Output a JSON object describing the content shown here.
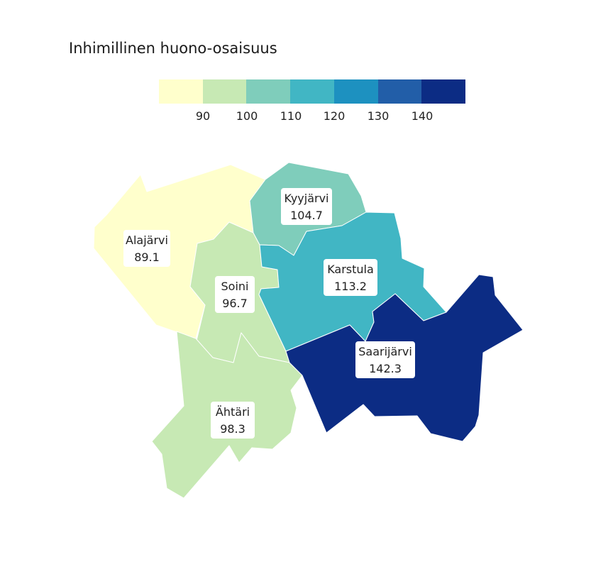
{
  "title": "Inhimillinen huono-osaisuus",
  "legend": {
    "colors": [
      "#ffffcc",
      "#c7e9b4",
      "#7fcdbb",
      "#41b6c4",
      "#1d91c0",
      "#225ea8",
      "#0c2c84"
    ],
    "ticks": [
      "90",
      "100",
      "110",
      "120",
      "130",
      "140"
    ]
  },
  "regions": [
    {
      "id": "alajarvi",
      "name": "Alajärvi",
      "value": "89.1",
      "color": "#ffffcc"
    },
    {
      "id": "soini",
      "name": "Soini",
      "value": "96.7",
      "color": "#c7e9b4"
    },
    {
      "id": "ahtari",
      "name": "Ähtäri",
      "value": "98.3",
      "color": "#c7e9b4"
    },
    {
      "id": "kyyjarvi",
      "name": "Kyyjärvi",
      "value": "104.7",
      "color": "#7fcdbb"
    },
    {
      "id": "karstula",
      "name": "Karstula",
      "value": "113.2",
      "color": "#41b6c4"
    },
    {
      "id": "saarijarvi",
      "name": "Saarijärvi",
      "value": "142.3",
      "color": "#0c2c84"
    }
  ]
}
